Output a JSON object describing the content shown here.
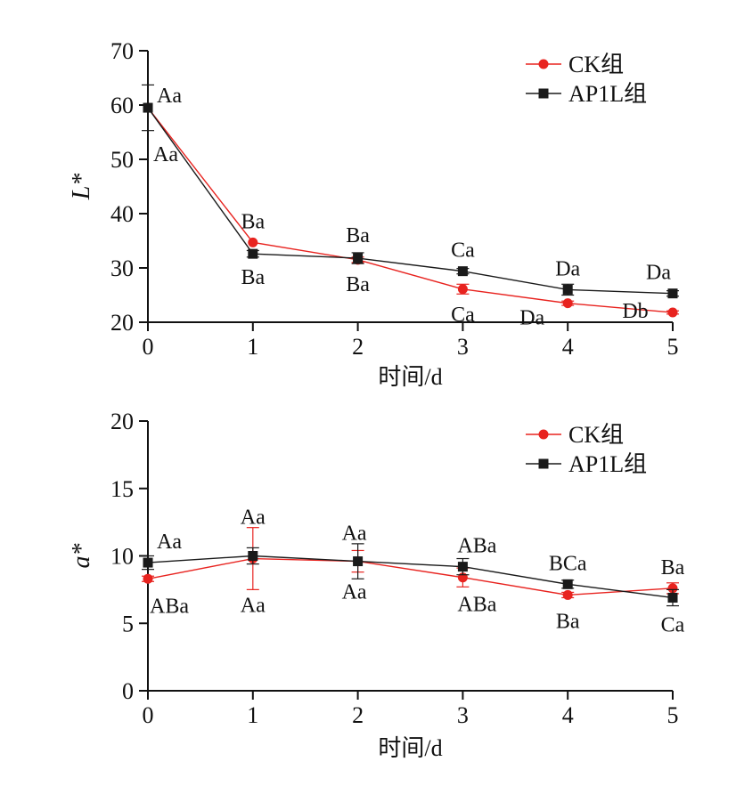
{
  "colors": {
    "ck": "#e8231f",
    "ap1l": "#1a1a1a",
    "axis": "#111111"
  },
  "chart_data": [
    {
      "type": "line",
      "xlabel": "时间/d",
      "ylabel": "L*",
      "x": [
        0,
        1,
        2,
        3,
        4,
        5
      ],
      "ylim": [
        20,
        70
      ],
      "yticks": [
        20,
        30,
        40,
        50,
        60,
        70
      ],
      "legend": "top-right",
      "series": [
        {
          "name": "CK组",
          "color": "#e8231f",
          "marker": "circle",
          "values": [
            59.5,
            34.7,
            31.5,
            26.1,
            23.5,
            21.8
          ],
          "errors": [
            0.0,
            0.0,
            0.5,
            0.9,
            0.4,
            0.3
          ],
          "labels": [
            "Aa",
            "Ba",
            "Ba",
            "Ca",
            "Da",
            "Db"
          ]
        },
        {
          "name": "AP1L组",
          "color": "#1a1a1a",
          "marker": "square",
          "values": [
            59.5,
            32.6,
            31.8,
            29.4,
            26.0,
            25.3
          ],
          "errors": [
            4.2,
            0.6,
            1.0,
            0.5,
            1.0,
            0.5
          ],
          "labels": [
            "Aa",
            "Ba",
            "Ba",
            "Ca",
            "Da",
            "Da"
          ]
        }
      ]
    },
    {
      "type": "line",
      "xlabel": "时间/d",
      "ylabel": "a*",
      "x": [
        0,
        1,
        2,
        3,
        4,
        5
      ],
      "ylim": [
        0,
        20
      ],
      "yticks": [
        0,
        5,
        10,
        15,
        20
      ],
      "legend": "top-right",
      "series": [
        {
          "name": "CK组",
          "color": "#e8231f",
          "marker": "circle",
          "values": [
            8.3,
            9.8,
            9.6,
            8.4,
            7.1,
            7.6
          ],
          "errors": [
            0.2,
            2.3,
            0.8,
            0.7,
            0.2,
            0.4
          ],
          "labels": [
            "ABa",
            "Aa",
            "Aa",
            "ABa",
            "Ba",
            "Ba"
          ]
        },
        {
          "name": "AP1L组",
          "color": "#1a1a1a",
          "marker": "square",
          "values": [
            9.5,
            10.0,
            9.6,
            9.2,
            7.9,
            6.9
          ],
          "errors": [
            0.5,
            0.6,
            1.3,
            0.6,
            0.3,
            0.6
          ],
          "labels": [
            "Aa",
            "Aa",
            "Aa",
            "ABa",
            "BCa",
            "Ca"
          ]
        }
      ]
    }
  ]
}
